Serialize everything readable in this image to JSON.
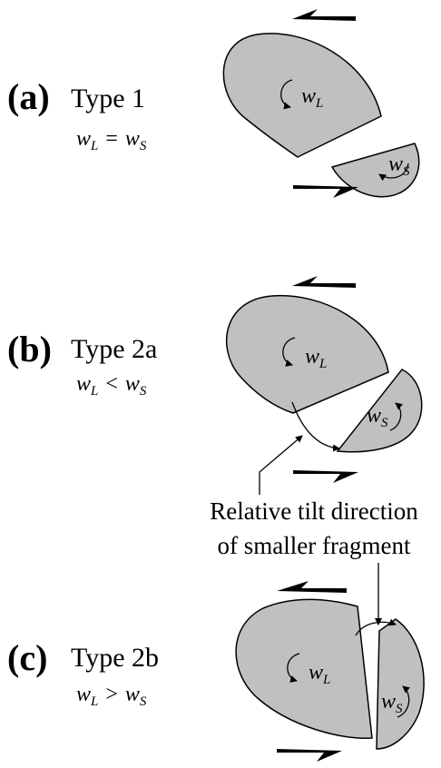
{
  "panels": [
    {
      "label": "(a)",
      "type": "Type 1",
      "relation": [
        "w",
        "L",
        "=",
        "w",
        "S"
      ],
      "large_symbol": [
        "w",
        "L"
      ],
      "small_symbol": [
        "w",
        "S"
      ]
    },
    {
      "label": "(b)",
      "type": "Type 2a",
      "relation": [
        "w",
        "L",
        "<",
        "w",
        "S"
      ],
      "large_symbol": [
        "w",
        "L"
      ],
      "small_symbol": [
        "w",
        "S"
      ]
    },
    {
      "label": "(c)",
      "type": "Type 2b",
      "relation": [
        "w",
        "L",
        ">",
        "w",
        "S"
      ],
      "large_symbol": [
        "w",
        "L"
      ],
      "small_symbol": [
        "w",
        "S"
      ]
    }
  ],
  "annotation": [
    "Relative tilt direction",
    "of smaller fragment"
  ]
}
